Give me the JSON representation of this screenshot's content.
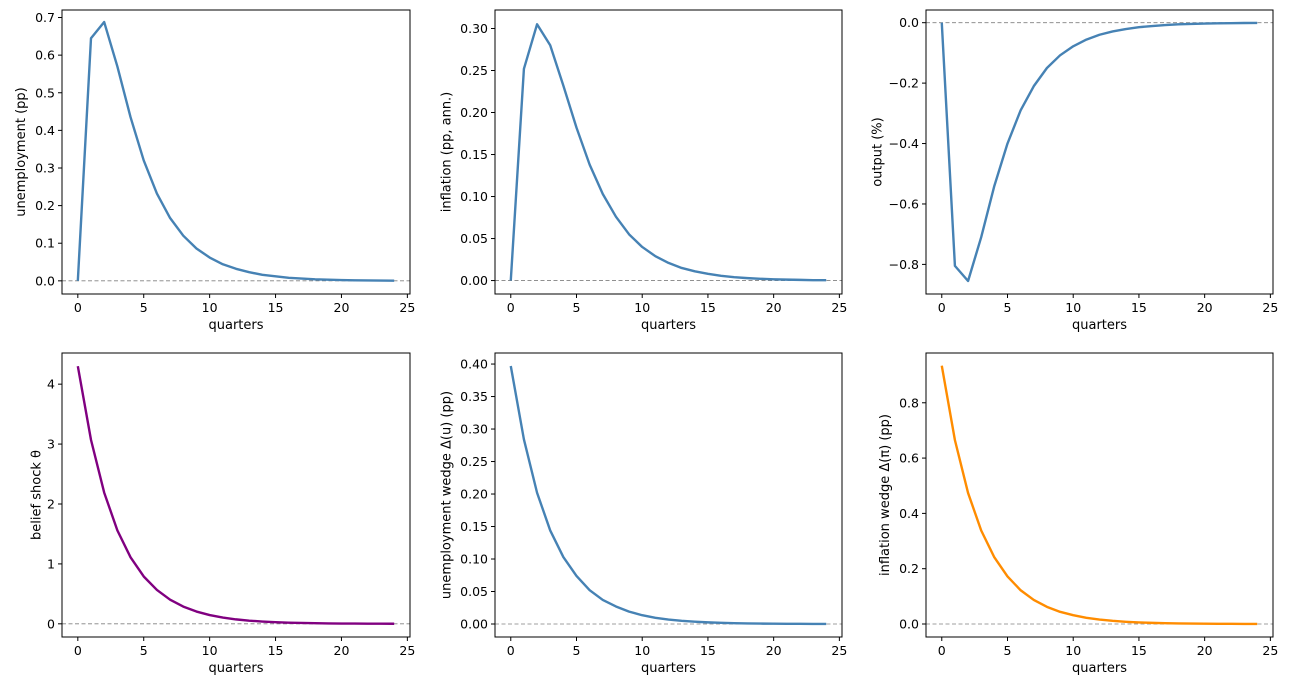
{
  "chart_data": [
    {
      "type": "line",
      "xlabel": "quarters",
      "ylabel": "unemployment (pp)",
      "xlim": [
        -1.2,
        25.2
      ],
      "ylim": [
        -0.035,
        0.72
      ],
      "xticks": [
        0,
        5,
        10,
        15,
        20,
        25
      ],
      "yticks": [
        0.0,
        0.1,
        0.2,
        0.3,
        0.4,
        0.5,
        0.6,
        0.7
      ],
      "ytick_labels": [
        "0.0",
        "0.1",
        "0.2",
        "0.3",
        "0.4",
        "0.5",
        "0.6",
        "0.7"
      ],
      "zero_line": true,
      "color": "#4682b4",
      "x": [
        0,
        1,
        2,
        3,
        4,
        5,
        6,
        7,
        8,
        9,
        10,
        11,
        12,
        13,
        14,
        15,
        16,
        17,
        18,
        19,
        20,
        21,
        22,
        23,
        24
      ],
      "y": [
        0,
        0.645,
        0.688,
        0.57,
        0.435,
        0.32,
        0.232,
        0.167,
        0.12,
        0.086,
        0.062,
        0.044,
        0.032,
        0.023,
        0.016,
        0.012,
        0.008,
        0.006,
        0.004,
        0.003,
        0.002,
        0.0015,
        0.001,
        0.0008,
        0.0005
      ]
    },
    {
      "type": "line",
      "xlabel": "quarters",
      "ylabel": "inflation (pp, ann.)",
      "xlim": [
        -1.2,
        25.2
      ],
      "ylim": [
        -0.016,
        0.322
      ],
      "xticks": [
        0,
        5,
        10,
        15,
        20,
        25
      ],
      "yticks": [
        0.0,
        0.05,
        0.1,
        0.15,
        0.2,
        0.25,
        0.3
      ],
      "ytick_labels": [
        "0.00",
        "0.05",
        "0.10",
        "0.15",
        "0.20",
        "0.25",
        "0.30"
      ],
      "zero_line": true,
      "color": "#4682b4",
      "x": [
        0,
        1,
        2,
        3,
        4,
        5,
        6,
        7,
        8,
        9,
        10,
        11,
        12,
        13,
        14,
        15,
        16,
        17,
        18,
        19,
        20,
        21,
        22,
        23,
        24
      ],
      "y": [
        0,
        0.252,
        0.305,
        0.28,
        0.232,
        0.182,
        0.138,
        0.103,
        0.076,
        0.055,
        0.04,
        0.029,
        0.021,
        0.015,
        0.011,
        0.008,
        0.0056,
        0.004,
        0.0029,
        0.0021,
        0.0015,
        0.0011,
        0.0008,
        0.0005,
        0.0004
      ]
    },
    {
      "type": "line",
      "xlabel": "quarters",
      "ylabel": "output (%)",
      "xlim": [
        -1.2,
        25.2
      ],
      "ylim": [
        -0.898,
        0.042
      ],
      "xticks": [
        0,
        5,
        10,
        15,
        20,
        25
      ],
      "yticks": [
        0.0,
        -0.2,
        -0.4,
        -0.6,
        -0.8
      ],
      "ytick_labels": [
        "0.0",
        "−0.2",
        "−0.4",
        "−0.6",
        "−0.8"
      ],
      "zero_line": true,
      "color": "#4682b4",
      "x": [
        0,
        1,
        2,
        3,
        4,
        5,
        6,
        7,
        8,
        9,
        10,
        11,
        12,
        13,
        14,
        15,
        16,
        17,
        18,
        19,
        20,
        21,
        22,
        23,
        24
      ],
      "y": [
        0,
        -0.805,
        -0.855,
        -0.71,
        -0.54,
        -0.4,
        -0.29,
        -0.21,
        -0.15,
        -0.108,
        -0.078,
        -0.056,
        -0.04,
        -0.029,
        -0.021,
        -0.015,
        -0.011,
        -0.008,
        -0.0055,
        -0.004,
        -0.003,
        -0.002,
        -0.0015,
        -0.001,
        -0.0007
      ]
    },
    {
      "type": "line",
      "xlabel": "quarters",
      "ylabel": "belief shock θ",
      "xlim": [
        -1.2,
        25.2
      ],
      "ylim": [
        -0.22,
        4.52
      ],
      "xticks": [
        0,
        5,
        10,
        15,
        20,
        25
      ],
      "yticks": [
        0,
        1,
        2,
        3,
        4
      ],
      "ytick_labels": [
        "0",
        "1",
        "2",
        "3",
        "4"
      ],
      "zero_line": true,
      "color": "#800080",
      "x": [
        0,
        1,
        2,
        3,
        4,
        5,
        6,
        7,
        8,
        9,
        10,
        11,
        12,
        13,
        14,
        15,
        16,
        17,
        18,
        19,
        20,
        21,
        22,
        23,
        24
      ],
      "y": [
        4.3,
        3.07,
        2.19,
        1.56,
        1.11,
        0.79,
        0.565,
        0.403,
        0.287,
        0.205,
        0.146,
        0.104,
        0.074,
        0.053,
        0.038,
        0.027,
        0.019,
        0.014,
        0.01,
        0.007,
        0.005,
        0.0036,
        0.0026,
        0.0018,
        0.0013
      ]
    },
    {
      "type": "line",
      "xlabel": "quarters",
      "ylabel": "unemployment wedge Δ(u) (pp)",
      "xlim": [
        -1.2,
        25.2
      ],
      "ylim": [
        -0.02,
        0.417
      ],
      "xticks": [
        0,
        5,
        10,
        15,
        20,
        25
      ],
      "yticks": [
        0.0,
        0.05,
        0.1,
        0.15,
        0.2,
        0.25,
        0.3,
        0.35,
        0.4
      ],
      "ytick_labels": [
        "0.00",
        "0.05",
        "0.10",
        "0.15",
        "0.20",
        "0.25",
        "0.30",
        "0.35",
        "0.40"
      ],
      "zero_line": true,
      "color": "#4682b4",
      "x": [
        0,
        1,
        2,
        3,
        4,
        5,
        6,
        7,
        8,
        9,
        10,
        11,
        12,
        13,
        14,
        15,
        16,
        17,
        18,
        19,
        20,
        21,
        22,
        23,
        24
      ],
      "y": [
        0.397,
        0.284,
        0.202,
        0.144,
        0.103,
        0.074,
        0.052,
        0.037,
        0.027,
        0.019,
        0.0135,
        0.0096,
        0.0069,
        0.0049,
        0.0035,
        0.0025,
        0.0018,
        0.0013,
        0.0009,
        0.0006,
        0.00045,
        0.00032,
        0.00023,
        0.00016,
        0.00012
      ]
    },
    {
      "type": "line",
      "xlabel": "quarters",
      "ylabel": "inflation wedge Δ(π) (pp)",
      "xlim": [
        -1.2,
        25.2
      ],
      "ylim": [
        -0.047,
        0.98
      ],
      "xticks": [
        0,
        5,
        10,
        15,
        20,
        25
      ],
      "yticks": [
        0.0,
        0.2,
        0.4,
        0.6,
        0.8
      ],
      "ytick_labels": [
        "0.0",
        "0.2",
        "0.4",
        "0.6",
        "0.8"
      ],
      "zero_line": true,
      "color": "#ff8c00",
      "x": [
        0,
        1,
        2,
        3,
        4,
        5,
        6,
        7,
        8,
        9,
        10,
        11,
        12,
        13,
        14,
        15,
        16,
        17,
        18,
        19,
        20,
        21,
        22,
        23,
        24
      ],
      "y": [
        0.934,
        0.665,
        0.474,
        0.338,
        0.241,
        0.172,
        0.122,
        0.087,
        0.062,
        0.044,
        0.032,
        0.0225,
        0.016,
        0.0114,
        0.0081,
        0.0058,
        0.0041,
        0.0029,
        0.0021,
        0.0015,
        0.0011,
        0.00077,
        0.00055,
        0.00039,
        0.00028
      ]
    }
  ]
}
